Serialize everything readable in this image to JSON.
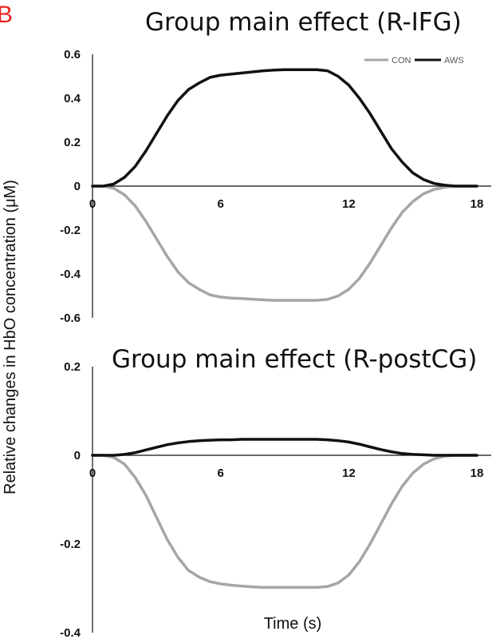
{
  "figure": {
    "panel_letter": "B",
    "ylabel": "Relative changes in HbO concentration (μM)",
    "xlabel": "Time (s)"
  },
  "chart_data": [
    {
      "type": "line",
      "title": "Group main effect (R-IFG)",
      "xlim": [
        0,
        18
      ],
      "ylim": [
        -0.6,
        0.6
      ],
      "xticks": [
        "0",
        "6",
        "12",
        "18"
      ],
      "yticks": [
        "0.6",
        "0.4",
        "0.2",
        "0",
        "-0.2",
        "-0.4",
        "-0.6"
      ],
      "legend": {
        "position": "top-right"
      },
      "x": [
        0,
        0.5,
        1,
        1.5,
        2,
        2.5,
        3,
        3.5,
        4,
        4.5,
        5,
        5.5,
        6,
        6.5,
        7,
        7.5,
        8,
        8.5,
        9,
        9.5,
        10,
        10.5,
        11,
        11.5,
        12,
        12.5,
        13,
        13.5,
        14,
        14.5,
        15,
        15.5,
        16,
        16.5,
        17,
        17.5,
        18
      ],
      "series": [
        {
          "name": "CON",
          "color": "#a6a6a6",
          "values": [
            0,
            0,
            -0.01,
            -0.04,
            -0.09,
            -0.16,
            -0.24,
            -0.32,
            -0.39,
            -0.44,
            -0.47,
            -0.495,
            -0.505,
            -0.51,
            -0.512,
            -0.515,
            -0.518,
            -0.52,
            -0.52,
            -0.52,
            -0.52,
            -0.52,
            -0.516,
            -0.5,
            -0.47,
            -0.42,
            -0.35,
            -0.27,
            -0.19,
            -0.12,
            -0.07,
            -0.035,
            -0.015,
            -0.005,
            0,
            0,
            0
          ]
        },
        {
          "name": "AWS",
          "color": "#111111",
          "values": [
            0,
            0,
            0.01,
            0.04,
            0.09,
            0.16,
            0.24,
            0.32,
            0.39,
            0.44,
            0.47,
            0.495,
            0.505,
            0.51,
            0.515,
            0.52,
            0.525,
            0.528,
            0.53,
            0.53,
            0.53,
            0.53,
            0.525,
            0.5,
            0.46,
            0.4,
            0.33,
            0.25,
            0.17,
            0.11,
            0.06,
            0.03,
            0.012,
            0.004,
            0,
            0,
            0
          ]
        }
      ]
    },
    {
      "type": "line",
      "title": "Group main effect (R-postCG)",
      "xlim": [
        0,
        18
      ],
      "ylim": [
        -0.4,
        0.2
      ],
      "xticks": [
        "0",
        "6",
        "12",
        "18"
      ],
      "yticks": [
        "0.2",
        "0",
        "-0.2",
        "-0.4"
      ],
      "x": [
        0,
        0.5,
        1,
        1.5,
        2,
        2.5,
        3,
        3.5,
        4,
        4.5,
        5,
        5.5,
        6,
        6.5,
        7,
        7.5,
        8,
        8.5,
        9,
        9.5,
        10,
        10.5,
        11,
        11.5,
        12,
        12.5,
        13,
        13.5,
        14,
        14.5,
        15,
        15.5,
        16,
        16.5,
        17,
        17.5,
        18
      ],
      "series": [
        {
          "name": "CON",
          "color": "#a6a6a6",
          "values": [
            0,
            0,
            -0.005,
            -0.02,
            -0.05,
            -0.09,
            -0.14,
            -0.19,
            -0.23,
            -0.26,
            -0.275,
            -0.285,
            -0.29,
            -0.293,
            -0.295,
            -0.297,
            -0.298,
            -0.298,
            -0.298,
            -0.298,
            -0.298,
            -0.298,
            -0.296,
            -0.288,
            -0.27,
            -0.24,
            -0.2,
            -0.155,
            -0.11,
            -0.07,
            -0.04,
            -0.02,
            -0.008,
            -0.002,
            0,
            0,
            0
          ]
        },
        {
          "name": "AWS",
          "color": "#111111",
          "values": [
            0,
            0,
            0,
            0.002,
            0.006,
            0.012,
            0.018,
            0.024,
            0.028,
            0.031,
            0.033,
            0.034,
            0.035,
            0.035,
            0.036,
            0.036,
            0.036,
            0.036,
            0.036,
            0.036,
            0.036,
            0.036,
            0.035,
            0.033,
            0.03,
            0.025,
            0.019,
            0.013,
            0.008,
            0.004,
            0.002,
            0.001,
            0,
            0,
            0,
            0,
            0
          ]
        }
      ]
    }
  ]
}
